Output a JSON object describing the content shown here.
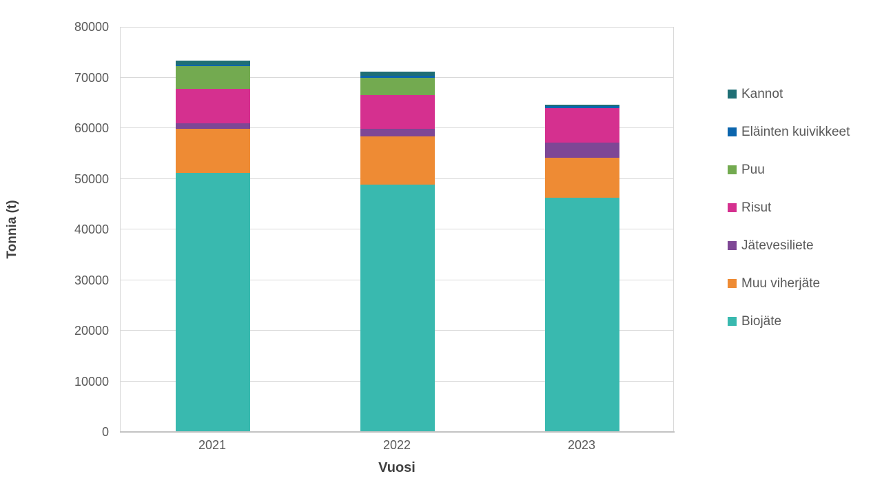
{
  "chart_data": {
    "type": "bar",
    "stacked": true,
    "title": "",
    "xlabel": "Vuosi",
    "ylabel": "Tonnia (t)",
    "categories": [
      "2021",
      "2022",
      "2023"
    ],
    "series": [
      {
        "name": "Biojäte",
        "color": "#39b9af",
        "values": [
          51100,
          48900,
          46200
        ]
      },
      {
        "name": "Muu viherjäte",
        "color": "#ee8b34",
        "values": [
          8700,
          9500,
          8000
        ]
      },
      {
        "name": "Jätevesiliete",
        "color": "#7e4795",
        "values": [
          1100,
          1500,
          2900
        ]
      },
      {
        "name": "Risut",
        "color": "#d5308f",
        "values": [
          6800,
          6700,
          6800
        ]
      },
      {
        "name": "Puu",
        "color": "#73aa50",
        "values": [
          4600,
          3400,
          0
        ]
      },
      {
        "name": "Eläinten kuivikkeet",
        "color": "#0b65ad",
        "values": [
          200,
          400,
          400
        ]
      },
      {
        "name": "Kannot",
        "color": "#1f6f75",
        "values": [
          900,
          700,
          300
        ]
      }
    ],
    "totals": [
      73400,
      71100,
      64600
    ],
    "legend": [
      "Kannot",
      "Eläinten kuivikkeet",
      "Puu",
      "Risut",
      "Jätevesiliete",
      "Muu viherjäte",
      "Biojäte"
    ],
    "legend_position": "right",
    "ylim": [
      0,
      80000
    ],
    "ytick_step": 10000,
    "yticks": [
      "0",
      "10000",
      "20000",
      "30000",
      "40000",
      "50000",
      "60000",
      "70000",
      "80000"
    ],
    "grid": "horizontal"
  },
  "styles": {
    "background": "#ffffff",
    "tick_color": "#595959",
    "axis_title_color": "#404040",
    "gridline_color": "#d9d9d9",
    "axis_line_color": "#c3c3c3"
  }
}
